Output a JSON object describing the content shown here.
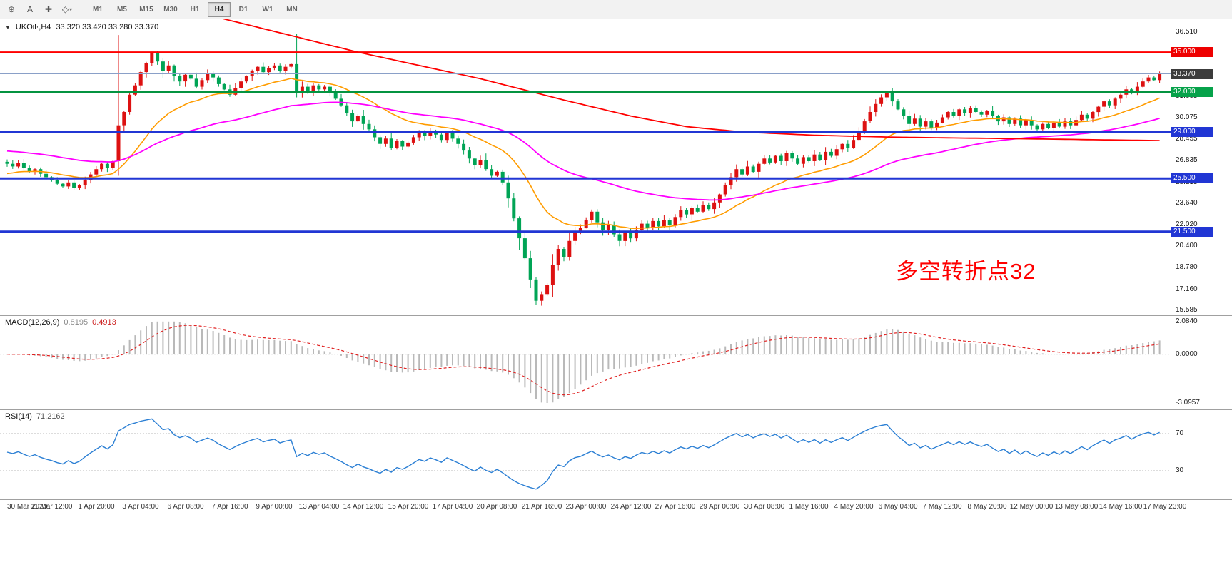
{
  "toolbar": {
    "tools": [
      {
        "name": "new-order-tool",
        "glyph": "⊕"
      },
      {
        "name": "text-tool",
        "glyph": "A"
      },
      {
        "name": "crosshair-tool",
        "glyph": "✚"
      },
      {
        "name": "shapes-tool",
        "glyph": "◇",
        "caret": "▾"
      }
    ],
    "timeframes": [
      "M1",
      "M5",
      "M15",
      "M30",
      "H1",
      "H4",
      "D1",
      "W1",
      "MN"
    ],
    "active_timeframe": "H4"
  },
  "chart": {
    "collapse_glyph": "▼",
    "symbol": "UKOil·,H4",
    "ohlc": "33.320 33.420 33.280 33.370"
  },
  "chart_data": {
    "type": "candlestick",
    "title": "UKOil H4",
    "ylim": [
      15.585,
      36.51
    ],
    "price_axis_labels": [
      "36.510",
      "31.695",
      "30.075",
      "28.455",
      "26.835",
      "25.215",
      "23.640",
      "22.020",
      "20.400",
      "18.780",
      "17.160",
      "15.585"
    ],
    "closes": [
      26.6,
      26.4,
      26.65,
      26.3,
      26.0,
      26.2,
      25.85,
      25.6,
      25.4,
      25.1,
      24.9,
      25.2,
      24.8,
      25.0,
      25.4,
      25.8,
      26.2,
      26.6,
      26.3,
      26.8,
      29.5,
      30.5,
      31.8,
      32.5,
      33.5,
      34.2,
      34.9,
      34.3,
      33.6,
      34.0,
      33.2,
      32.8,
      33.3,
      33.0,
      32.4,
      32.9,
      33.4,
      33.1,
      32.6,
      32.2,
      31.8,
      32.3,
      32.8,
      33.2,
      33.6,
      33.9,
      33.5,
      33.8,
      34.0,
      33.6,
      33.9,
      34.1,
      31.9,
      32.4,
      32.0,
      32.5,
      32.2,
      32.4,
      31.9,
      31.5,
      31.0,
      30.4,
      29.8,
      30.2,
      29.6,
      29.2,
      28.6,
      28.1,
      28.5,
      27.8,
      28.3,
      27.9,
      28.2,
      28.6,
      29.0,
      28.7,
      29.1,
      28.8,
      28.4,
      28.9,
      28.5,
      28.1,
      27.6,
      27.0,
      26.5,
      26.9,
      26.2,
      25.7,
      26.0,
      25.2,
      24.0,
      22.5,
      21.0,
      19.5,
      17.9,
      16.3,
      16.8,
      17.5,
      19.0,
      20.2,
      19.6,
      20.8,
      21.5,
      21.8,
      22.4,
      23.0,
      22.2,
      21.6,
      22.0,
      21.3,
      20.8,
      21.4,
      21.0,
      21.6,
      22.1,
      21.8,
      22.3,
      21.9,
      22.4,
      22.0,
      22.6,
      23.1,
      22.8,
      23.3,
      23.0,
      23.5,
      23.2,
      23.7,
      24.3,
      25.0,
      25.6,
      26.2,
      25.8,
      26.4,
      26.0,
      26.6,
      27.0,
      26.7,
      27.2,
      26.8,
      27.4,
      27.0,
      26.6,
      27.1,
      26.8,
      27.3,
      26.9,
      27.5,
      27.2,
      27.7,
      28.1,
      27.8,
      28.4,
      29.1,
      29.8,
      30.5,
      31.1,
      31.6,
      31.9,
      31.3,
      30.7,
      30.2,
      29.6,
      30.0,
      29.4,
      29.8,
      29.3,
      29.7,
      30.1,
      30.5,
      30.2,
      30.7,
      30.4,
      30.8,
      30.5,
      30.3,
      30.6,
      30.2,
      29.8,
      30.1,
      29.6,
      30.0,
      29.5,
      29.9,
      29.5,
      29.2,
      29.6,
      29.3,
      29.7,
      29.4,
      29.8,
      29.5,
      29.9,
      30.3,
      30.0,
      30.5,
      30.9,
      31.3,
      31.0,
      31.5,
      31.8,
      32.2,
      31.9,
      32.4,
      32.8,
      33.1,
      32.9,
      33.37
    ],
    "special_candles": [
      {
        "index": 20,
        "open": 26.8,
        "high": 36.29,
        "low": 25.7,
        "close": 29.5
      },
      {
        "index": 52,
        "open": 34.1,
        "high": 36.4,
        "low": 31.6,
        "close": 31.9
      },
      {
        "index": 95,
        "open": 17.9,
        "high": 18.1,
        "low": 15.98,
        "close": 16.3
      }
    ],
    "horizontal_lines": [
      {
        "price": 35.0,
        "label": "35.000",
        "color": "#ff0000",
        "width": 2,
        "badge": "#ee0000"
      },
      {
        "price": 33.37,
        "label": "33.370",
        "color": "#8aa0c8",
        "width": 1,
        "badge": "#3c3c3c",
        "current": true
      },
      {
        "price": 32.0,
        "label": "32.000",
        "color": "#049340",
        "width": 3,
        "badge": "#06a24a"
      },
      {
        "price": 29.0,
        "label": "29.000",
        "color": "#2136d4",
        "width": 3,
        "badge": "#2136d4"
      },
      {
        "price": 25.5,
        "label": "25.500",
        "color": "#2136d4",
        "width": 3,
        "badge": "#2136d4"
      },
      {
        "price": 21.5,
        "label": "21.500",
        "color": "#2136d4",
        "width": 3,
        "badge": "#2136d4"
      }
    ],
    "moving_averages": {
      "orange": {
        "type": "ema",
        "period": 21,
        "seed": 25.8,
        "color": "#ff9c00"
      },
      "magenta": {
        "type": "ema",
        "period": 60,
        "seed": 27.6,
        "color": "#ff00ff"
      },
      "red_trend": {
        "type": "waypoints",
        "color": "#ff0000",
        "points": [
          [
            38,
            37.6
          ],
          [
            63,
            35.0
          ],
          [
            85,
            33.0
          ],
          [
            100,
            31.4
          ],
          [
            112,
            30.2
          ],
          [
            122,
            29.4
          ],
          [
            132,
            29.0
          ],
          [
            145,
            28.75
          ],
          [
            160,
            28.6
          ],
          [
            180,
            28.5
          ],
          [
            207,
            28.35
          ]
        ]
      }
    },
    "candle_colors": {
      "bull": "#dd1111",
      "bear": "#00a455"
    },
    "annotation": {
      "text": "多空转折点32",
      "color": "#ff0000"
    },
    "time_labels": [
      "30 Mar 2020",
      "31 Mar 12:00",
      "1 Apr 20:00",
      "3 Apr 04:00",
      "6 Apr 08:00",
      "7 Apr 16:00",
      "9 Apr 00:00",
      "13 Apr 04:00",
      "14 Apr 12:00",
      "15 Apr 20:00",
      "17 Apr 04:00",
      "20 Apr 08:00",
      "21 Apr 16:00",
      "23 Apr 00:00",
      "24 Apr 12:00",
      "27 Apr 16:00",
      "29 Apr 00:00",
      "30 Apr 08:00",
      "1 May 16:00",
      "4 May 20:00",
      "6 May 04:00",
      "7 May 12:00",
      "8 May 20:00",
      "12 May 00:00",
      "13 May 08:00",
      "14 May 16:00",
      "17 May 23:00"
    ],
    "macd": {
      "label": "MACD(12,26,9)",
      "main_value": "0.8195",
      "signal_value": "0.4913",
      "fast": 12,
      "slow": 26,
      "signal": 9,
      "axis_labels": [
        {
          "text": "2.0840",
          "value": 2.084
        },
        {
          "text": "0.0000",
          "value": 0
        },
        {
          "text": "-3.0957",
          "value": -3.0957
        }
      ],
      "histogram_color": "#b9b9b9",
      "signal_color": "#e02020"
    },
    "rsi": {
      "label": "RSI(14)",
      "value": "71.2162",
      "period": 14,
      "levels": [
        70,
        30
      ],
      "line_color": "#2b7fd4"
    }
  }
}
